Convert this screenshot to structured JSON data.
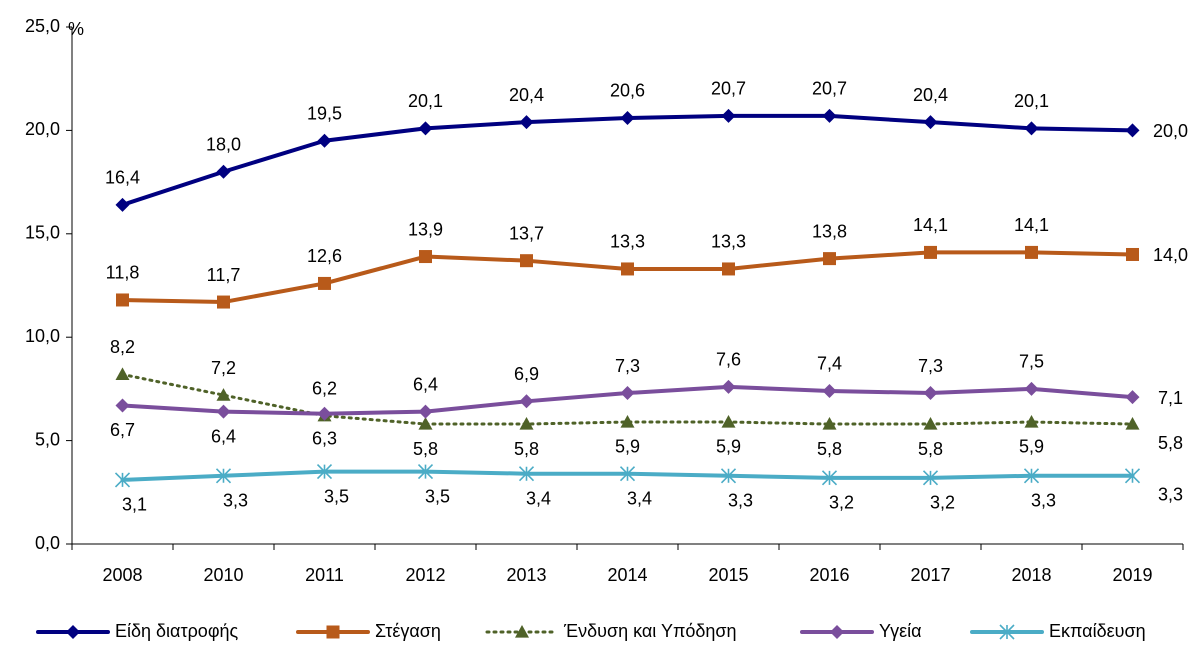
{
  "chart_data": {
    "type": "line",
    "y_label": "%",
    "categories": [
      "2008",
      "2010",
      "2011",
      "2012",
      "2013",
      "2014",
      "2015",
      "2016",
      "2017",
      "2018",
      "2019"
    ],
    "ylim": [
      0,
      25
    ],
    "yticks": [
      {
        "value": 0,
        "label": "0,0"
      },
      {
        "value": 5,
        "label": "5,0"
      },
      {
        "value": 10,
        "label": "10,0"
      },
      {
        "value": 15,
        "label": "15,0"
      },
      {
        "value": 20,
        "label": "20,0"
      },
      {
        "value": 25,
        "label": "25,0"
      }
    ],
    "grid": false,
    "legend": "bottom",
    "series": [
      {
        "name": "Είδη διατροφής",
        "color": "#000080",
        "marker": "diamond",
        "line_style": "solid",
        "values": [
          16.4,
          18.0,
          19.5,
          20.1,
          20.4,
          20.6,
          20.7,
          20.7,
          20.4,
          20.1,
          20.0
        ],
        "value_labels": [
          "16,4",
          "18,0",
          "19,5",
          "20,1",
          "20,4",
          "20,6",
          "20,7",
          "20,7",
          "20,4",
          "20,1",
          "20,0"
        ]
      },
      {
        "name": "Στέγαση",
        "color": "#b85a1a",
        "marker": "square",
        "line_style": "solid",
        "values": [
          11.8,
          11.7,
          12.6,
          13.9,
          13.7,
          13.3,
          13.3,
          13.8,
          14.1,
          14.1,
          14.0
        ],
        "value_labels": [
          "11,8",
          "11,7",
          "12,6",
          "13,9",
          "13,7",
          "13,3",
          "13,3",
          "13,8",
          "14,1",
          "14,1",
          "14,0"
        ]
      },
      {
        "name": "Ένδυση και Υπόδηση",
        "color": "#4f6228",
        "marker": "triangle",
        "line_style": "dotted",
        "values": [
          8.2,
          7.2,
          6.2,
          5.8,
          5.8,
          5.9,
          5.9,
          5.8,
          5.8,
          5.9,
          5.8
        ],
        "value_labels": [
          "8,2",
          "7,2",
          "6,2",
          "5,8",
          "5,8",
          "5,9",
          "5,9",
          "5,8",
          "5,8",
          "5,9",
          "5,8"
        ]
      },
      {
        "name": "Υγεία",
        "color": "#7a4e9c",
        "marker": "diamond",
        "line_style": "solid",
        "values": [
          6.7,
          6.4,
          6.3,
          6.4,
          6.9,
          7.3,
          7.6,
          7.4,
          7.3,
          7.5,
          7.1
        ],
        "value_labels": [
          "6,7",
          "6,4",
          "6,3",
          "6,4",
          "6,9",
          "7,3",
          "7,6",
          "7,4",
          "7,3",
          "7,5",
          "7,1"
        ]
      },
      {
        "name": "Εκπαίδευση",
        "color": "#4bacc6",
        "marker": "asterisk",
        "line_style": "solid",
        "values": [
          3.1,
          3.3,
          3.5,
          3.5,
          3.4,
          3.4,
          3.3,
          3.2,
          3.2,
          3.3,
          3.3
        ],
        "value_labels": [
          "3,1",
          "3,3",
          "3,5",
          "3,5",
          "3,4",
          "3,4",
          "3,3",
          "3,2",
          "3,2",
          "3,3",
          "3,3"
        ]
      }
    ]
  }
}
